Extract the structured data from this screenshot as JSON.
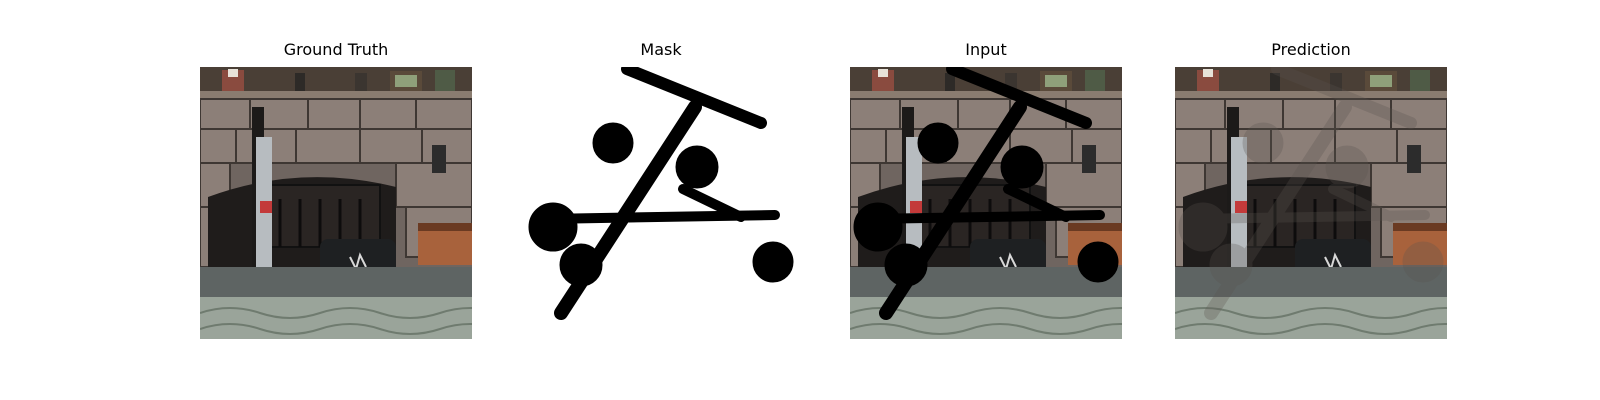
{
  "panels": [
    {
      "title": "Ground Truth"
    },
    {
      "title": "Mask"
    },
    {
      "title": "Input"
    },
    {
      "title": "Prediction"
    }
  ]
}
